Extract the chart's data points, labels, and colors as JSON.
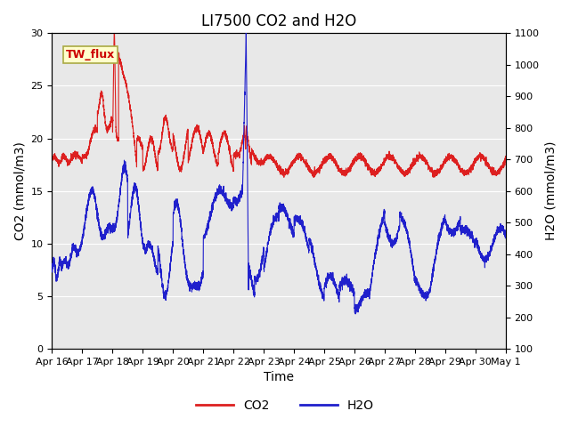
{
  "title": "LI7500 CO2 and H2O",
  "xlabel": "Time",
  "ylabel_left": "CO2 (mmol/m3)",
  "ylabel_right": "H2O (mmol/m3)",
  "annotation_text": "TW_flux",
  "ylim_left": [
    0,
    30
  ],
  "ylim_right": [
    100,
    1100
  ],
  "yticks_left": [
    0,
    5,
    10,
    15,
    20,
    25,
    30
  ],
  "yticks_right": [
    100,
    200,
    300,
    400,
    500,
    600,
    700,
    800,
    900,
    1000,
    1100
  ],
  "x_tick_labels": [
    "Apr 16",
    "Apr 17",
    "Apr 18",
    "Apr 19",
    "Apr 20",
    "Apr 21",
    "Apr 22",
    "Apr 23",
    "Apr 24",
    "Apr 25",
    "Apr 26",
    "Apr 27",
    "Apr 28",
    "Apr 29",
    "Apr 30",
    "May 1"
  ],
  "background_color": "#e8e8e8",
  "co2_color": "#dd2020",
  "h2o_color": "#2020cc",
  "legend_co2": "CO2",
  "legend_h2o": "H2O",
  "title_fontsize": 12,
  "axis_label_fontsize": 10,
  "tick_fontsize": 8,
  "n_days": 15,
  "n_points": 5000
}
